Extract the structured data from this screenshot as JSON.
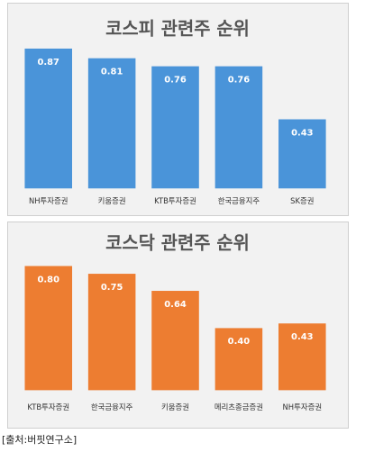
{
  "source": "[출처:버핏연구소]",
  "colors": {
    "kospi_bar": "#4a94d9",
    "kosdaq_bar": "#ed7d31",
    "panel_bg": "#f2f2f2"
  },
  "chart_data": [
    {
      "type": "bar",
      "title": "코스피 관련주 순위",
      "categories": [
        "NH투자증권",
        "키움증권",
        "KTB투자증권",
        "한국금융지주",
        "SK증권"
      ],
      "values": [
        0.87,
        0.81,
        0.76,
        0.76,
        0.43
      ],
      "data_labels": [
        "0.87",
        "0.81",
        "0.76",
        "0.76",
        "0.43"
      ],
      "ylim": [
        0,
        1.0
      ],
      "grid": false,
      "legend": "none"
    },
    {
      "type": "bar",
      "title": "코스닥 관련주 순위",
      "categories": [
        "KTB투자증권",
        "한국금융지주",
        "키움증권",
        "메리츠종금증권",
        "NH투자증권"
      ],
      "values": [
        0.8,
        0.75,
        0.64,
        0.4,
        0.43
      ],
      "data_labels": [
        "0.80",
        "0.75",
        "0.64",
        "0.40",
        "0.43"
      ],
      "ylim": [
        0,
        0.92
      ],
      "grid": false,
      "legend": "none"
    }
  ]
}
